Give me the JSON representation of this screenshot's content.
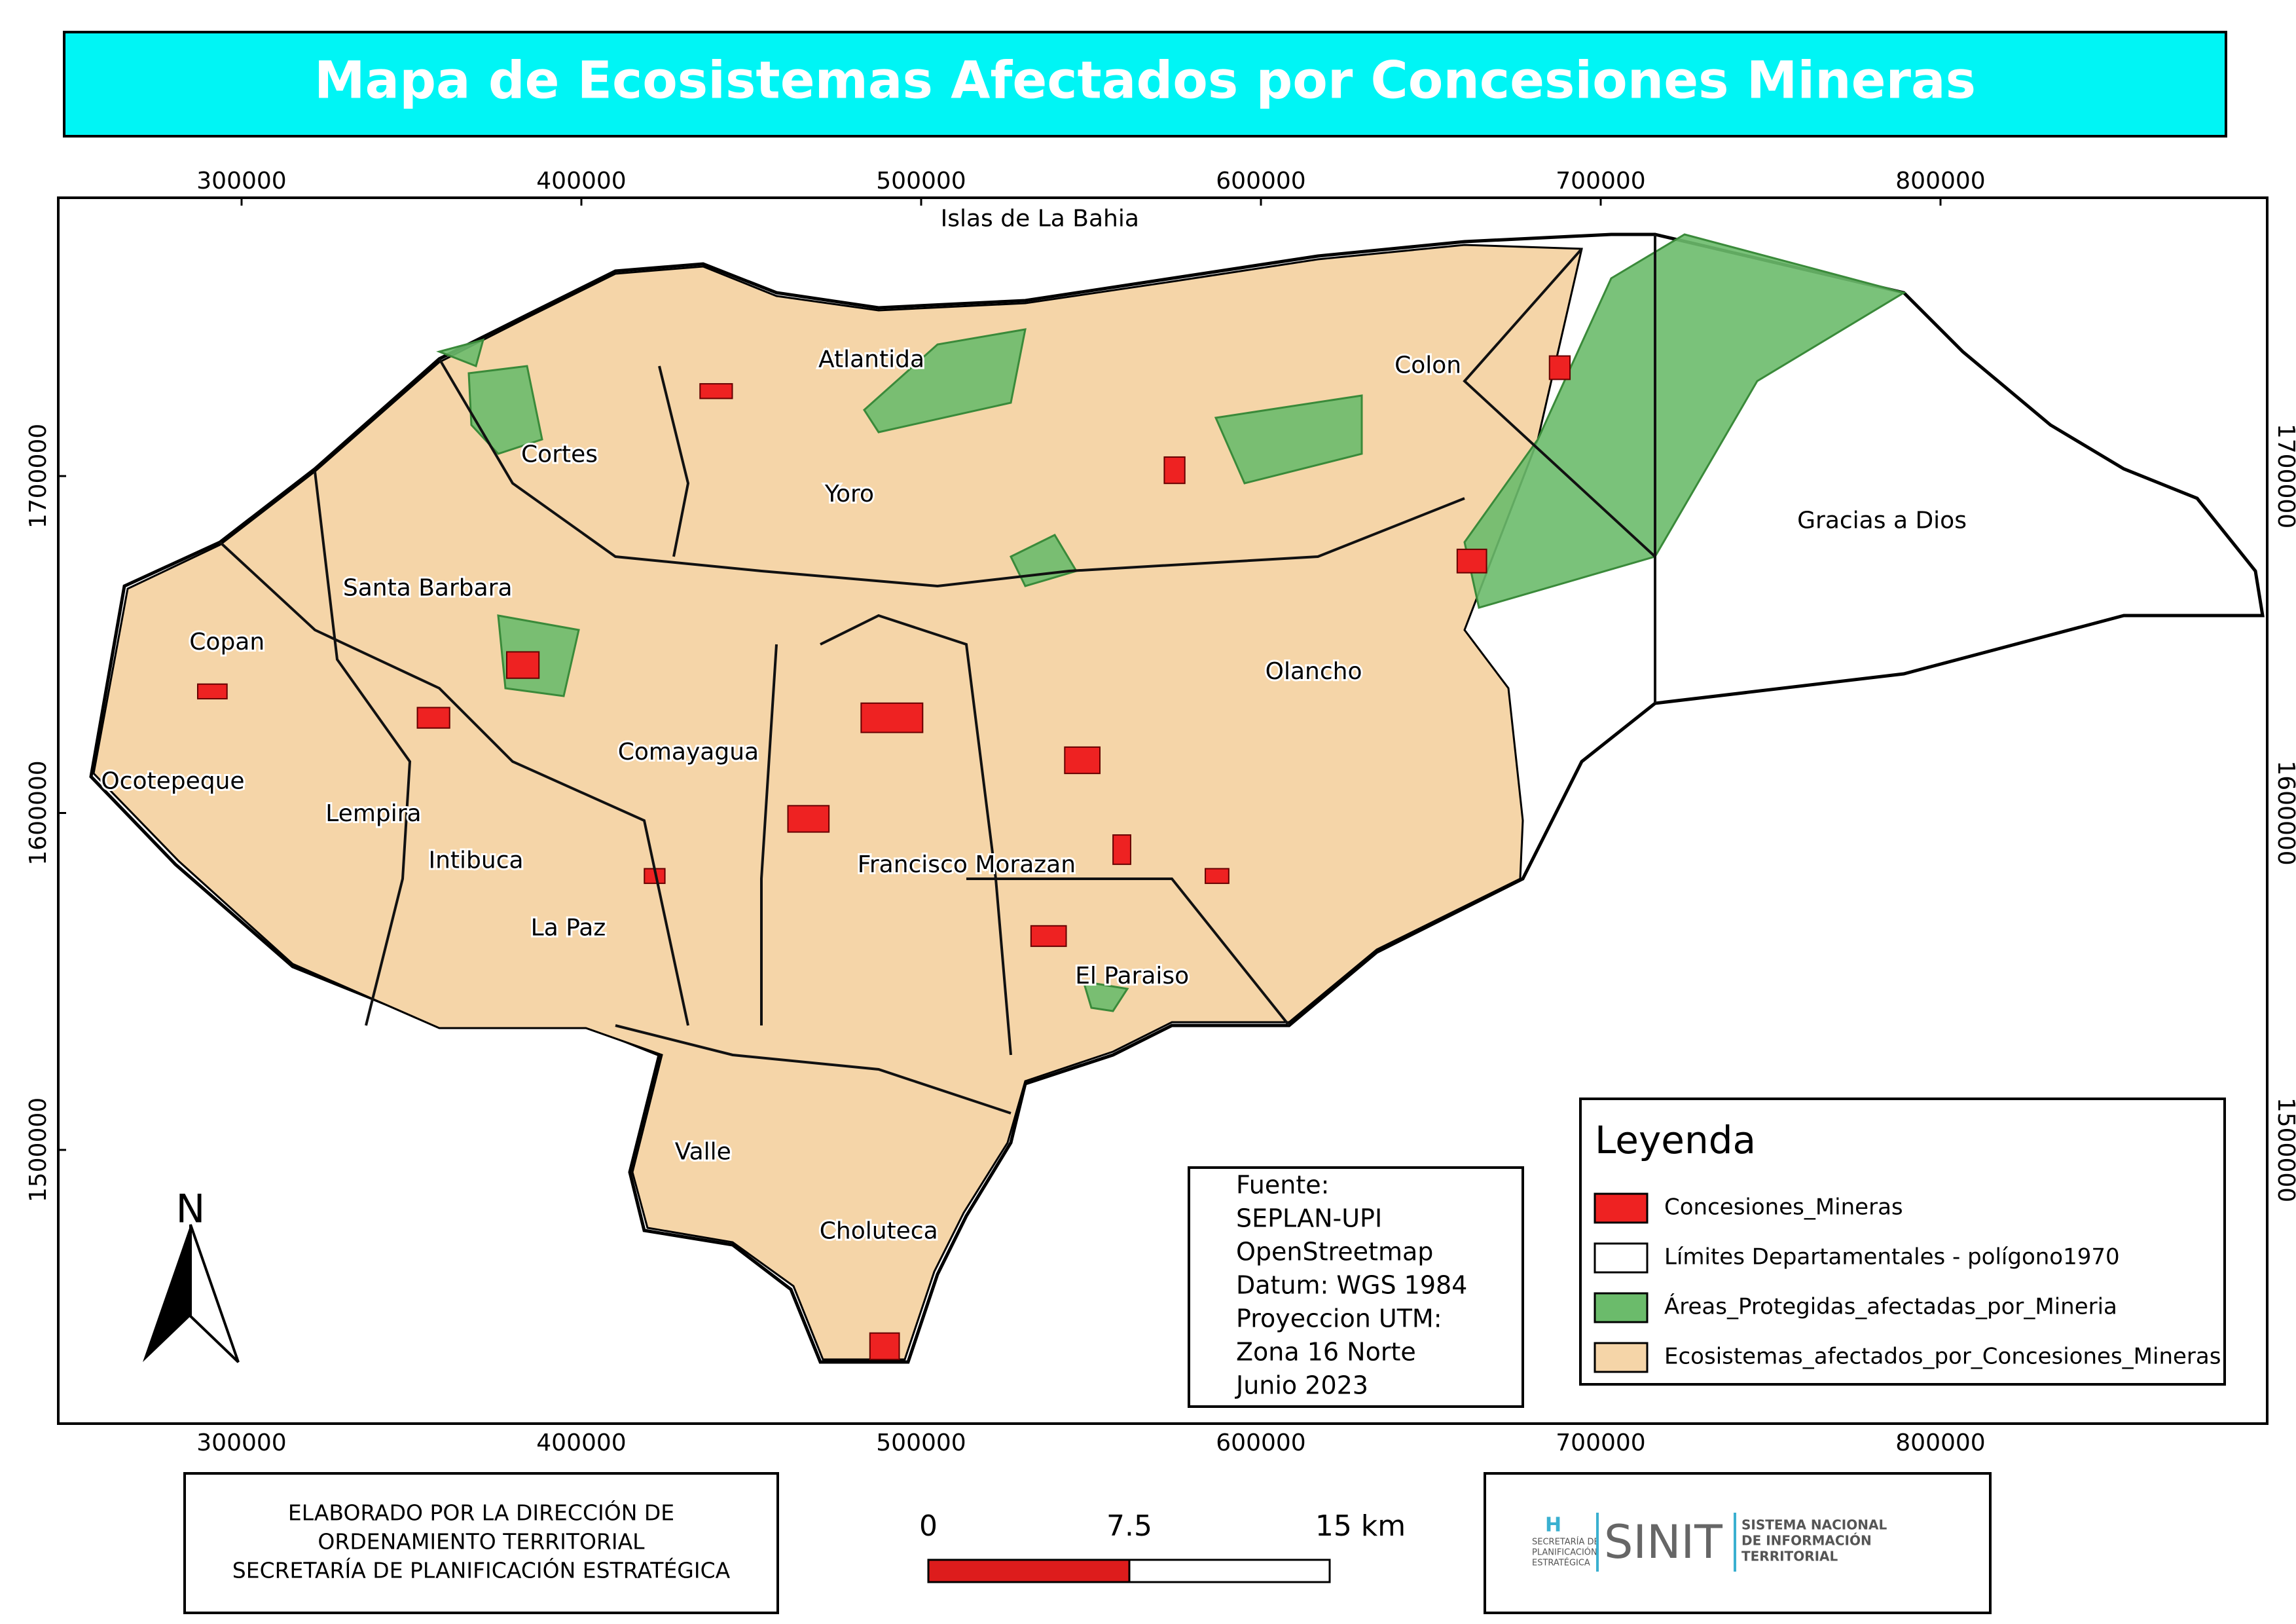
{
  "title": "Mapa de Ecosistemas Afectados por Concesiones Mineras",
  "coordinate_grid": {
    "x_ticks": [
      300000,
      400000,
      500000,
      600000,
      700000,
      800000
    ],
    "y_ticks": [
      1500000,
      1600000,
      1700000
    ]
  },
  "place_labels": [
    "Islas de La Bahia",
    "Atlantida",
    "Colon",
    "Cortes",
    "Yoro",
    "Gracias a Dios",
    "Santa Barbara",
    "Copan",
    "Olancho",
    "Comayagua",
    "Ocotepeque",
    "Lempira",
    "Intibuca",
    "Francisco Morazan",
    "La Paz",
    "El Paraiso",
    "Valle",
    "Choluteca"
  ],
  "north_arrow": "N",
  "legend": {
    "title": "Leyenda",
    "items": [
      {
        "label": "Concesiones_Mineras",
        "color": "#ee2222"
      },
      {
        "label": "Límites Departamentales - polígono1970",
        "color": "#ffffff"
      },
      {
        "label": "Áreas_Protegidas_afectadas_por_Mineria",
        "color": "#6bbb6b"
      },
      {
        "label": "Ecosistemas_afectados_por_Concesiones_Mineras",
        "color": "#f5d5a8"
      }
    ]
  },
  "source": [
    "Fuente:",
    "SEPLAN-UPI",
    "OpenStreetmap",
    "Datum: WGS 1984",
    "Proyeccion UTM:",
    "Zona 16 Norte",
    "Junio 2023"
  ],
  "credits": [
    "ELABORADO POR LA DIRECCIÓN DE",
    "ORDENAMIENTO TERRITORIAL",
    "SECRETARÍA DE PLANIFICACIÓN ESTRATÉGICA"
  ],
  "scale_bar": [
    "0",
    "7.5",
    "15 km"
  ],
  "logo": {
    "mark": "H",
    "agency": [
      "SECRETARÍA DE",
      "PLANIFICACIÓN",
      "ESTRATÉGICA"
    ],
    "name": "SINIT",
    "full_name": [
      "SISTEMA NACIONAL",
      "DE INFORMACIÓN",
      "TERRITORIAL"
    ]
  }
}
